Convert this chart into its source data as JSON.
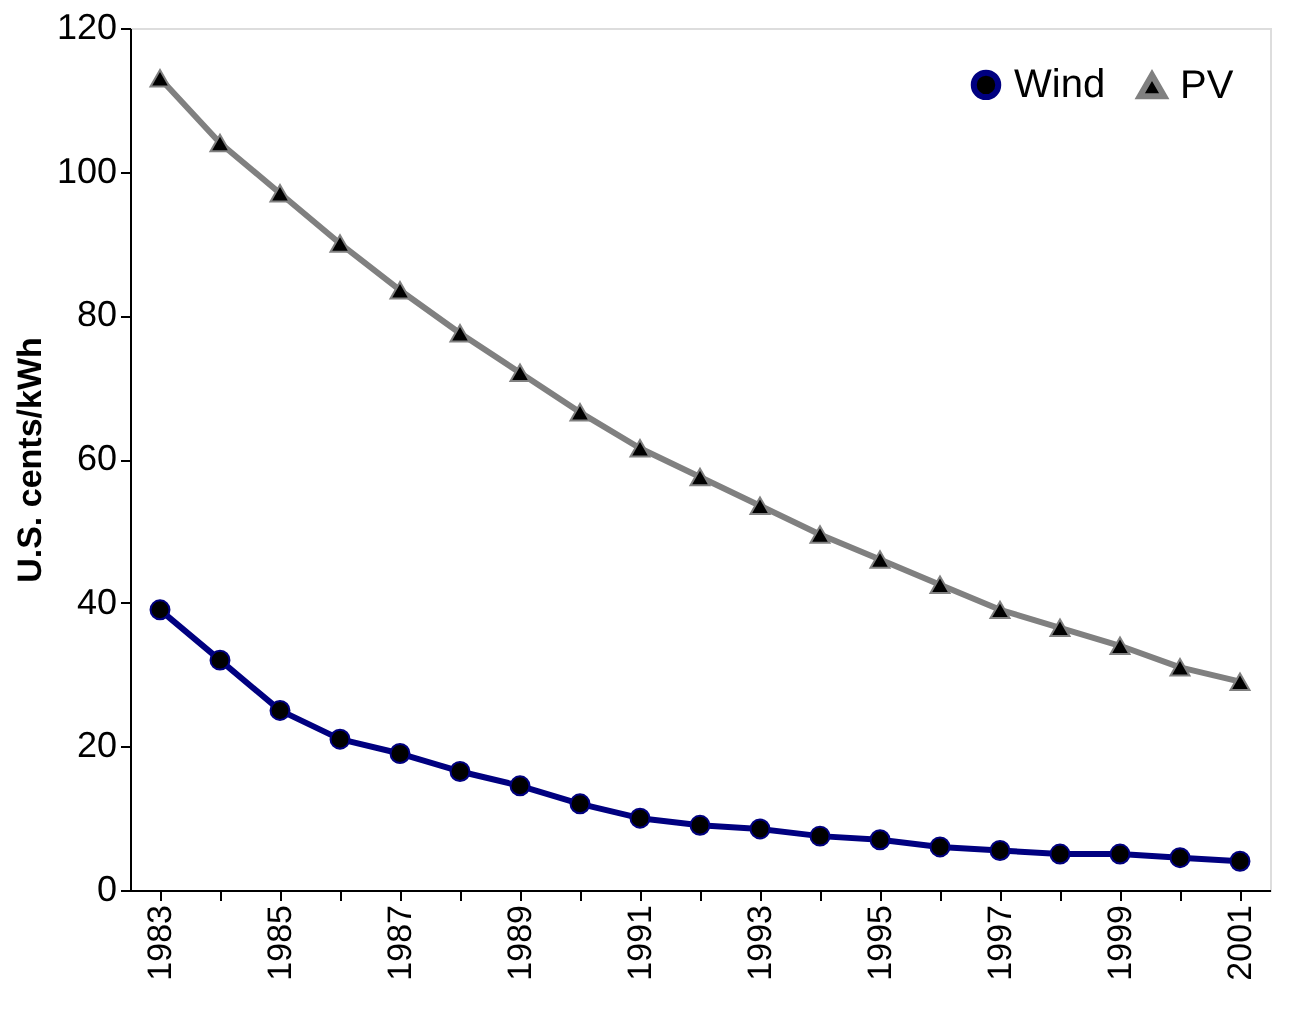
{
  "chart_data": {
    "type": "line",
    "ylabel": "U.S. cents/kWh",
    "categories": [
      "1983",
      null,
      "1985",
      null,
      "1987",
      null,
      "1989",
      null,
      "1991",
      null,
      "1993",
      null,
      "1995",
      null,
      "1997",
      null,
      "1999",
      null,
      "2001"
    ],
    "series": [
      {
        "name": "Wind",
        "color": "#000080",
        "marker": "circle",
        "values": [
          39,
          32,
          25,
          21,
          19,
          16.5,
          14.5,
          12,
          10,
          9,
          8.5,
          7.5,
          7,
          6,
          5.5,
          5,
          5,
          4.5,
          4
        ]
      },
      {
        "name": "PV",
        "color": "#808080",
        "marker": "triangle",
        "values": [
          113,
          104,
          97,
          90,
          83.5,
          77.5,
          72,
          66.5,
          61.5,
          57.5,
          53.5,
          49.5,
          46,
          42.5,
          39,
          36.5,
          34,
          31,
          29
        ]
      }
    ],
    "ylim": [
      0,
      120
    ],
    "yticks": [
      0,
      20,
      40,
      60,
      80,
      100,
      120
    ],
    "grid": false,
    "legend": "top right",
    "line_style": "solid"
  }
}
